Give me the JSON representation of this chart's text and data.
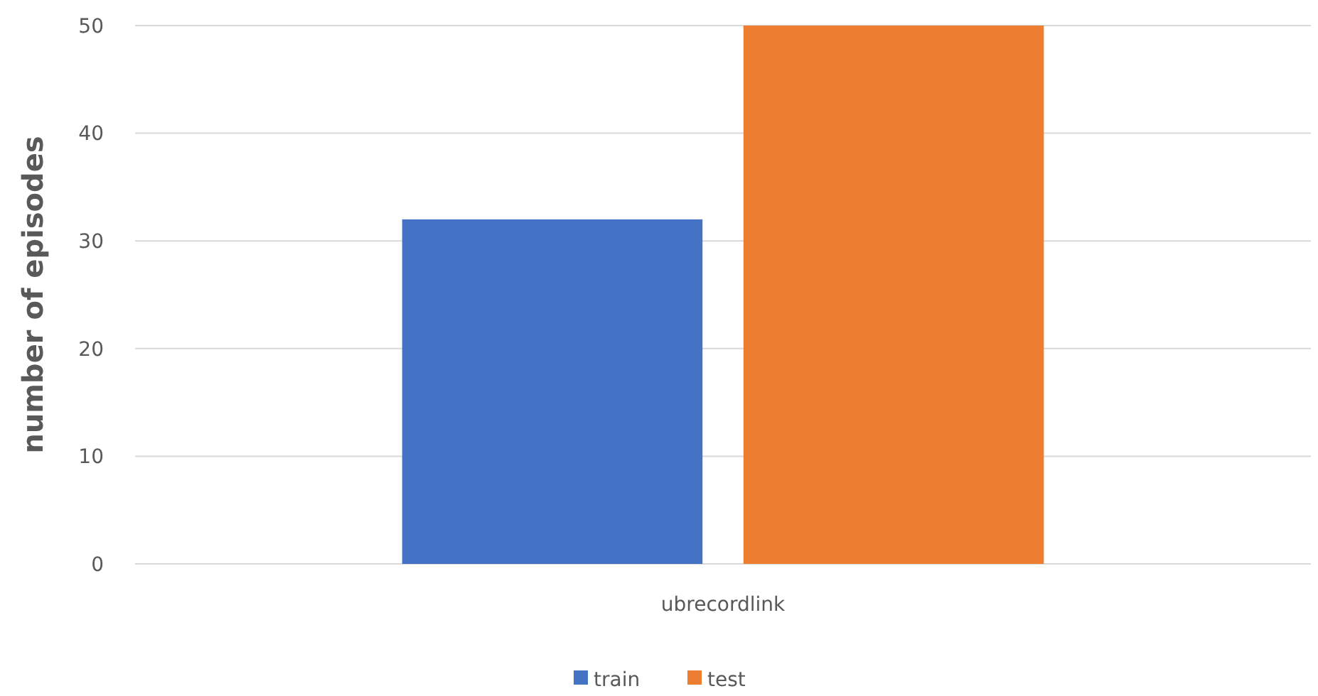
{
  "chart_data": {
    "type": "bar",
    "ylabel": "number of episodes",
    "categories": [
      "ubrecordlink"
    ],
    "series": [
      {
        "name": "train",
        "color": "#4472c4",
        "values": [
          32
        ]
      },
      {
        "name": "test",
        "color": "#ed7d31",
        "values": [
          50
        ]
      }
    ],
    "ylim": [
      0,
      50
    ],
    "yticks": [
      0,
      10,
      20,
      30,
      40,
      50
    ],
    "grid": "y",
    "legend": "bottom"
  }
}
